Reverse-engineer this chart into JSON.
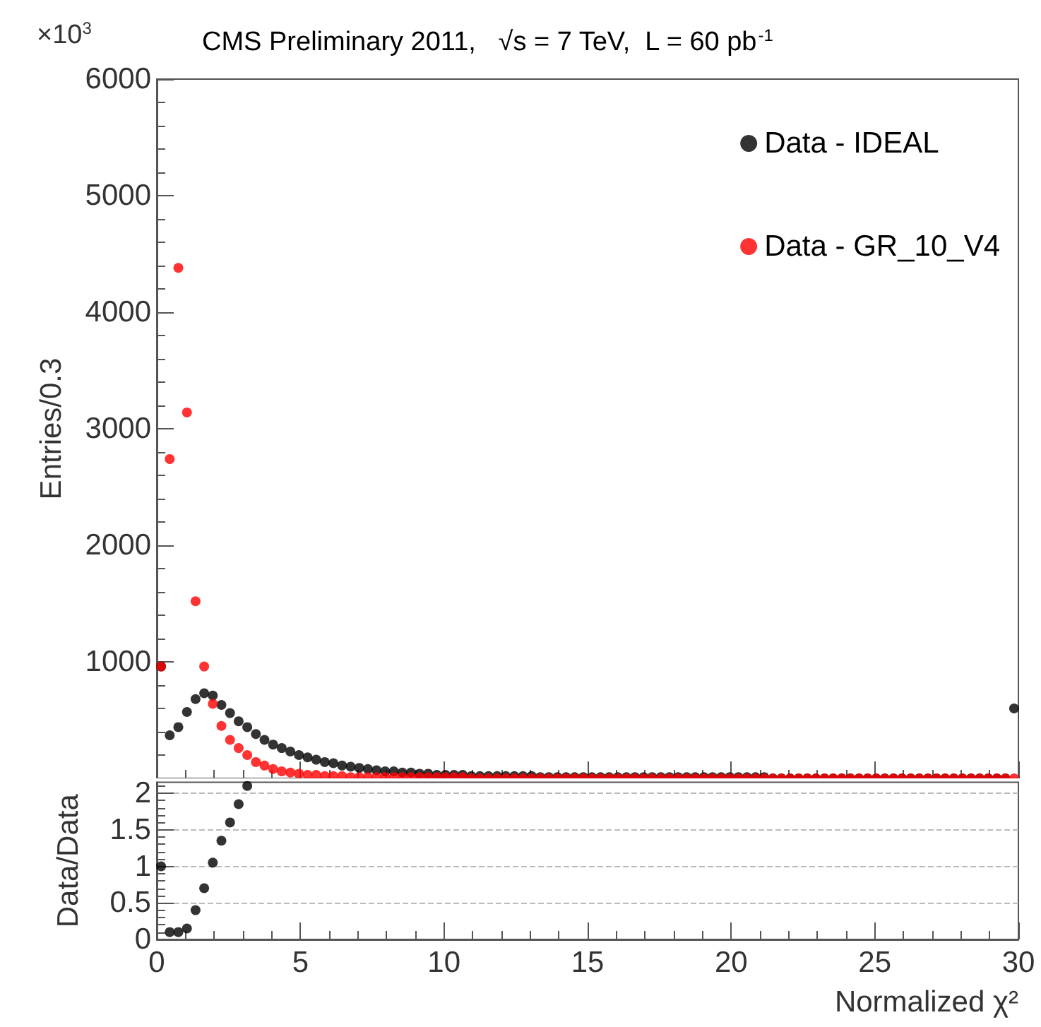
{
  "chart_data": [
    {
      "type": "scatter",
      "title": "CMS Preliminary 2011,   √s = 7 TeV,  L = 60 pb$^{-1}$",
      "ylabel": "Entries/0.3",
      "annotations": [
        "×10$^{3}$"
      ],
      "x": [
        0.15,
        0.45,
        0.75,
        1.05,
        1.35,
        1.65,
        1.95,
        2.25,
        2.55,
        2.85,
        3.15,
        3.45,
        3.75,
        4.05,
        4.35,
        4.65,
        4.95,
        5.25,
        5.55,
        5.85,
        6.15,
        6.45,
        6.75,
        7.05,
        7.35,
        7.65,
        7.95,
        8.25,
        8.55,
        8.85,
        9.15,
        9.45,
        9.75,
        10.05,
        10.35,
        10.65,
        10.95,
        11.25,
        11.55,
        11.85,
        12.15,
        12.45,
        12.75,
        13.05,
        13.35,
        13.65,
        13.95,
        14.25,
        14.55,
        14.85,
        15.15,
        15.45,
        15.75,
        16.05,
        16.35,
        16.65,
        16.95,
        17.25,
        17.55,
        17.85,
        18.15,
        18.45,
        18.75,
        19.05,
        19.35,
        19.65,
        19.95,
        20.25,
        20.55,
        20.85,
        21.15,
        21.45,
        21.75,
        22.05,
        22.35,
        22.65,
        22.95,
        23.25,
        23.55,
        23.85,
        24.15,
        24.45,
        24.75,
        25.05,
        25.35,
        25.65,
        25.95,
        26.25,
        26.55,
        26.85,
        27.15,
        27.45,
        27.75,
        28.05,
        28.35,
        28.65,
        28.95,
        29.25,
        29.55,
        29.85
      ],
      "series": [
        {
          "name": "Data - IDEAL",
          "color": "#000000",
          "values": [
            960,
            370,
            440,
            570,
            680,
            730,
            710,
            630,
            560,
            490,
            440,
            380,
            330,
            290,
            260,
            230,
            200,
            180,
            160,
            140,
            130,
            110,
            100,
            90,
            80,
            70,
            60,
            60,
            50,
            50,
            40,
            40,
            30,
            30,
            30,
            30,
            20,
            20,
            20,
            20,
            20,
            20,
            20,
            20,
            10,
            10,
            10,
            10,
            10,
            10,
            10,
            10,
            10,
            10,
            10,
            10,
            10,
            10,
            10,
            10,
            10,
            10,
            10,
            10,
            10,
            10,
            10,
            10,
            10,
            10,
            10,
            0,
            0,
            0,
            0,
            0,
            0,
            0,
            0,
            0,
            0,
            0,
            0,
            0,
            0,
            0,
            0,
            0,
            0,
            0,
            0,
            0,
            0,
            0,
            0,
            0,
            0,
            0,
            0,
            600
          ]
        },
        {
          "name": "Data - GR_10_V4",
          "color": "#ff0000",
          "values": [
            960,
            2740,
            4380,
            3140,
            1520,
            960,
            640,
            450,
            330,
            260,
            200,
            140,
            110,
            80,
            60,
            50,
            40,
            30,
            30,
            20,
            20,
            20,
            10,
            10,
            10,
            10,
            10,
            10,
            10,
            10,
            10,
            10,
            10,
            10,
            10,
            10,
            0,
            0,
            0,
            0,
            0,
            0,
            0,
            0,
            0,
            0,
            0,
            0,
            0,
            0,
            0,
            0,
            0,
            0,
            0,
            0,
            0,
            0,
            0,
            0,
            0,
            0,
            0,
            0,
            0,
            0,
            0,
            0,
            0,
            0,
            0,
            0,
            0,
            0,
            0,
            0,
            0,
            0,
            0,
            0,
            0,
            0,
            0,
            0,
            0,
            0,
            0,
            0,
            0,
            0,
            0,
            0,
            0,
            0,
            0,
            0,
            0,
            0,
            0,
            0
          ]
        }
      ],
      "xlim": [
        0,
        30
      ],
      "xticks": [
        0,
        5,
        10,
        15,
        20,
        25,
        30
      ],
      "ylim": [
        0,
        6000
      ],
      "yticks": [
        {
          "value": 0,
          "label": null
        },
        1000,
        2000,
        3000,
        4000,
        5000,
        6000
      ],
      "tick_labels": "y",
      "legend": "top right",
      "marker": "circle",
      "grid": false
    },
    {
      "type": "scatter",
      "xlabel": "Normalized χ²",
      "ylabel": "Data/Data",
      "x": [
        0.15,
        0.45,
        0.75,
        1.05,
        1.35,
        1.65,
        1.95,
        2.25,
        2.55,
        2.85,
        3.15
      ],
      "series": [
        {
          "color": "#000000",
          "values": [
            1.0,
            0.1,
            0.1,
            0.15,
            0.4,
            0.7,
            1.05,
            1.35,
            1.6,
            1.85,
            2.1
          ]
        }
      ],
      "xlim": [
        0,
        30
      ],
      "xticks": [
        0,
        5,
        10,
        15,
        20,
        25,
        30
      ],
      "ylim": [
        0,
        2.15
      ],
      "yticks": [
        0,
        0.5,
        1,
        1.5,
        2
      ],
      "marker": "circle",
      "grid": "y"
    }
  ]
}
